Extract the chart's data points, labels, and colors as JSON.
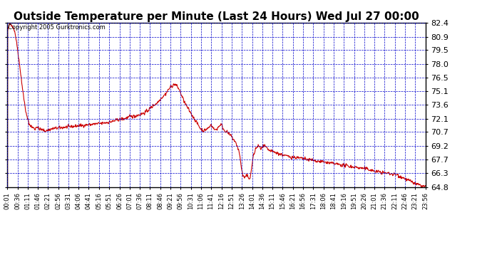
{
  "title": "Outside Temperature per Minute (Last 24 Hours) Wed Jul 27 00:00",
  "copyright_text": "Copyright 2005 Gurktronics.com",
  "y_ticks": [
    64.8,
    66.3,
    67.7,
    69.2,
    70.7,
    72.1,
    73.6,
    75.1,
    76.5,
    78.0,
    79.5,
    80.9,
    82.4
  ],
  "y_min": 64.8,
  "y_max": 82.4,
  "line_color": "#cc0000",
  "grid_color": "#0000cc",
  "background_color": "#ffffff",
  "title_fontsize": 11,
  "copyright_fontsize": 6,
  "ytick_fontsize": 8,
  "xtick_fontsize": 6,
  "x_tick_labels": [
    "00:01",
    "00:36",
    "01:11",
    "01:46",
    "02:21",
    "02:56",
    "03:31",
    "04:06",
    "04:41",
    "05:16",
    "05:51",
    "06:26",
    "07:01",
    "07:36",
    "08:11",
    "08:46",
    "09:21",
    "09:56",
    "10:31",
    "11:06",
    "11:41",
    "12:16",
    "12:51",
    "13:26",
    "14:01",
    "14:36",
    "15:11",
    "15:46",
    "16:21",
    "16:56",
    "17:31",
    "18:06",
    "18:41",
    "19:16",
    "19:51",
    "20:26",
    "21:01",
    "21:36",
    "22:11",
    "22:46",
    "23:21",
    "23:56"
  ],
  "waypoints": [
    [
      0,
      81.5
    ],
    [
      8,
      82.3
    ],
    [
      15,
      82.2
    ],
    [
      25,
      81.5
    ],
    [
      35,
      79.5
    ],
    [
      45,
      77.0
    ],
    [
      55,
      74.5
    ],
    [
      65,
      72.5
    ],
    [
      75,
      71.5
    ],
    [
      85,
      71.2
    ],
    [
      95,
      71.0
    ],
    [
      100,
      71.3
    ],
    [
      110,
      71.0
    ],
    [
      120,
      70.9
    ],
    [
      130,
      70.8
    ],
    [
      150,
      71.0
    ],
    [
      170,
      71.1
    ],
    [
      200,
      71.2
    ],
    [
      230,
      71.3
    ],
    [
      260,
      71.4
    ],
    [
      290,
      71.5
    ],
    [
      320,
      71.6
    ],
    [
      340,
      71.7
    ],
    [
      360,
      71.8
    ],
    [
      380,
      72.0
    ],
    [
      400,
      72.1
    ],
    [
      420,
      72.3
    ],
    [
      440,
      72.4
    ],
    [
      460,
      72.6
    ],
    [
      475,
      72.8
    ],
    [
      490,
      73.2
    ],
    [
      505,
      73.6
    ],
    [
      515,
      73.8
    ],
    [
      525,
      74.2
    ],
    [
      535,
      74.5
    ],
    [
      545,
      74.8
    ],
    [
      555,
      75.3
    ],
    [
      565,
      75.6
    ],
    [
      570,
      75.7
    ],
    [
      575,
      75.8
    ],
    [
      580,
      75.7
    ],
    [
      590,
      75.3
    ],
    [
      600,
      74.5
    ],
    [
      615,
      73.5
    ],
    [
      625,
      73.0
    ],
    [
      635,
      72.5
    ],
    [
      645,
      72.0
    ],
    [
      655,
      71.5
    ],
    [
      665,
      71.0
    ],
    [
      675,
      70.8
    ],
    [
      685,
      71.0
    ],
    [
      695,
      71.2
    ],
    [
      700,
      71.5
    ],
    [
      705,
      71.3
    ],
    [
      710,
      71.0
    ],
    [
      715,
      70.9
    ],
    [
      720,
      71.0
    ],
    [
      725,
      71.2
    ],
    [
      730,
      71.4
    ],
    [
      735,
      71.5
    ],
    [
      740,
      71.2
    ],
    [
      745,
      70.9
    ],
    [
      755,
      70.7
    ],
    [
      760,
      70.5
    ],
    [
      768,
      70.3
    ],
    [
      775,
      70.0
    ],
    [
      780,
      69.8
    ],
    [
      785,
      69.5
    ],
    [
      790,
      69.2
    ],
    [
      795,
      68.8
    ],
    [
      800,
      68.0
    ],
    [
      805,
      66.8
    ],
    [
      810,
      66.0
    ],
    [
      815,
      65.8
    ],
    [
      820,
      65.9
    ],
    [
      825,
      66.0
    ],
    [
      830,
      65.8
    ],
    [
      835,
      65.7
    ],
    [
      845,
      68.0
    ],
    [
      855,
      69.0
    ],
    [
      865,
      69.2
    ],
    [
      870,
      68.9
    ],
    [
      875,
      69.0
    ],
    [
      885,
      69.2
    ],
    [
      890,
      69.0
    ],
    [
      895,
      68.8
    ],
    [
      900,
      68.7
    ],
    [
      920,
      68.5
    ],
    [
      940,
      68.3
    ],
    [
      960,
      68.1
    ],
    [
      980,
      68.0
    ],
    [
      1000,
      67.9
    ],
    [
      1020,
      67.8
    ],
    [
      1040,
      67.7
    ],
    [
      1060,
      67.6
    ],
    [
      1080,
      67.5
    ],
    [
      1100,
      67.4
    ],
    [
      1120,
      67.3
    ],
    [
      1140,
      67.2
    ],
    [
      1160,
      67.1
    ],
    [
      1180,
      67.0
    ],
    [
      1200,
      66.9
    ],
    [
      1220,
      66.8
    ],
    [
      1240,
      66.7
    ],
    [
      1260,
      66.5
    ],
    [
      1280,
      66.4
    ],
    [
      1300,
      66.3
    ],
    [
      1320,
      66.2
    ],
    [
      1340,
      66.1
    ],
    [
      1360,
      65.8
    ],
    [
      1380,
      65.5
    ],
    [
      1400,
      65.2
    ],
    [
      1415,
      65.0
    ],
    [
      1425,
      64.9
    ],
    [
      1435,
      64.85
    ],
    [
      1439,
      64.8
    ]
  ]
}
